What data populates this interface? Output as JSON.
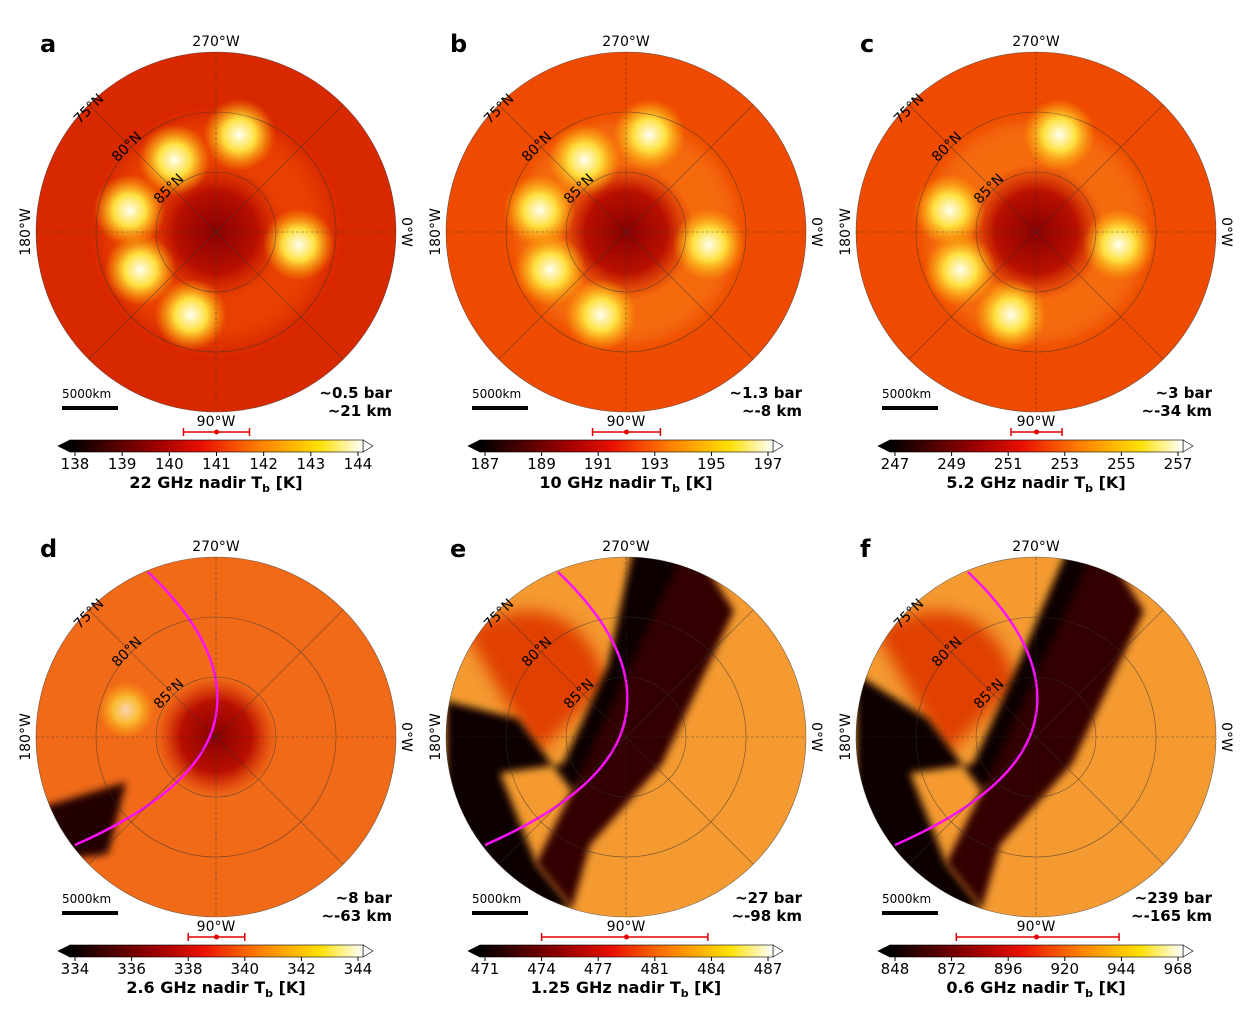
{
  "panels": [
    {
      "letter": "a",
      "top": "270°W",
      "left": "180°W",
      "right": "0°W",
      "bottom": "90°W",
      "lats": [
        "75°N",
        "80°N",
        "85°N"
      ],
      "scale": "5000km",
      "pressure": "~0.5 bar",
      "depth": "~21 km",
      "colorbar": {
        "ticks": [
          138,
          139,
          140,
          141,
          142,
          143,
          144
        ],
        "label": [
          "22 GHz nadir T",
          "b",
          " [K]"
        ],
        "marker": [
          140.3,
          141,
          141.7
        ]
      }
    },
    {
      "letter": "b",
      "top": "270°W",
      "left": "180°W",
      "right": "0°W",
      "bottom": "90°W",
      "lats": [
        "75°N",
        "80°N",
        "85°N"
      ],
      "scale": "5000km",
      "pressure": "~1.3 bar",
      "depth": "~-8 km",
      "colorbar": {
        "ticks": [
          187,
          189,
          191,
          193,
          195,
          197
        ],
        "label": [
          "10 GHz nadir T",
          "b",
          " [K]"
        ],
        "marker": [
          190.8,
          192,
          193.2
        ]
      }
    },
    {
      "letter": "c",
      "top": "270°W",
      "left": "180°W",
      "right": "0°W",
      "bottom": "90°W",
      "lats": [
        "75°N",
        "80°N",
        "85°N"
      ],
      "scale": "5000km",
      "pressure": "~3 bar",
      "depth": "~-34 km",
      "colorbar": {
        "ticks": [
          247,
          249,
          251,
          253,
          255,
          257
        ],
        "label": [
          "5.2 GHz nadir T",
          "b",
          " [K]"
        ],
        "marker": [
          251.1,
          252,
          252.9
        ]
      }
    },
    {
      "letter": "d",
      "top": "270°W",
      "left": "180°W",
      "right": "0°W",
      "bottom": "90°W",
      "lats": [
        "75°N",
        "80°N",
        "85°N"
      ],
      "scale": "5000km",
      "pressure": "~8 bar",
      "depth": "~-63 km",
      "colorbar": {
        "ticks": [
          334,
          336,
          338,
          340,
          342,
          344
        ],
        "label": [
          "2.6 GHz nadir T",
          "b",
          " [K]"
        ],
        "marker": [
          338,
          339,
          340
        ]
      }
    },
    {
      "letter": "e",
      "top": "270°W",
      "left": "180°W",
      "right": "0°W",
      "bottom": "90°W",
      "lats": [
        "75°N",
        "80°N",
        "85°N"
      ],
      "scale": "5000km",
      "pressure": "~27 bar",
      "depth": "~-98 km",
      "colorbar": {
        "ticks": [
          471,
          {
            "value": 474.2,
            "label": "474"
          },
          {
            "value": 477.4,
            "label": "477"
          },
          {
            "value": 480.6,
            "label": "481"
          },
          {
            "value": 483.8,
            "label": "484"
          },
          487
        ],
        "label": [
          "1.25 GHz nadir T",
          "b",
          " [K]"
        ],
        "marker": [
          474.2,
          479,
          483.6
        ]
      }
    },
    {
      "letter": "f",
      "top": "270°W",
      "left": "180°W",
      "right": "0°W",
      "bottom": "90°W",
      "lats": [
        "75°N",
        "80°N",
        "85°N"
      ],
      "scale": "5000km",
      "pressure": "~239 bar",
      "depth": "~-165 km",
      "colorbar": {
        "ticks": [
          848,
          872,
          896,
          920,
          944,
          968
        ],
        "label": [
          "0.6 GHz nadir T",
          "b",
          " [K]"
        ],
        "marker": [
          874,
          908,
          943
        ]
      }
    }
  ]
}
